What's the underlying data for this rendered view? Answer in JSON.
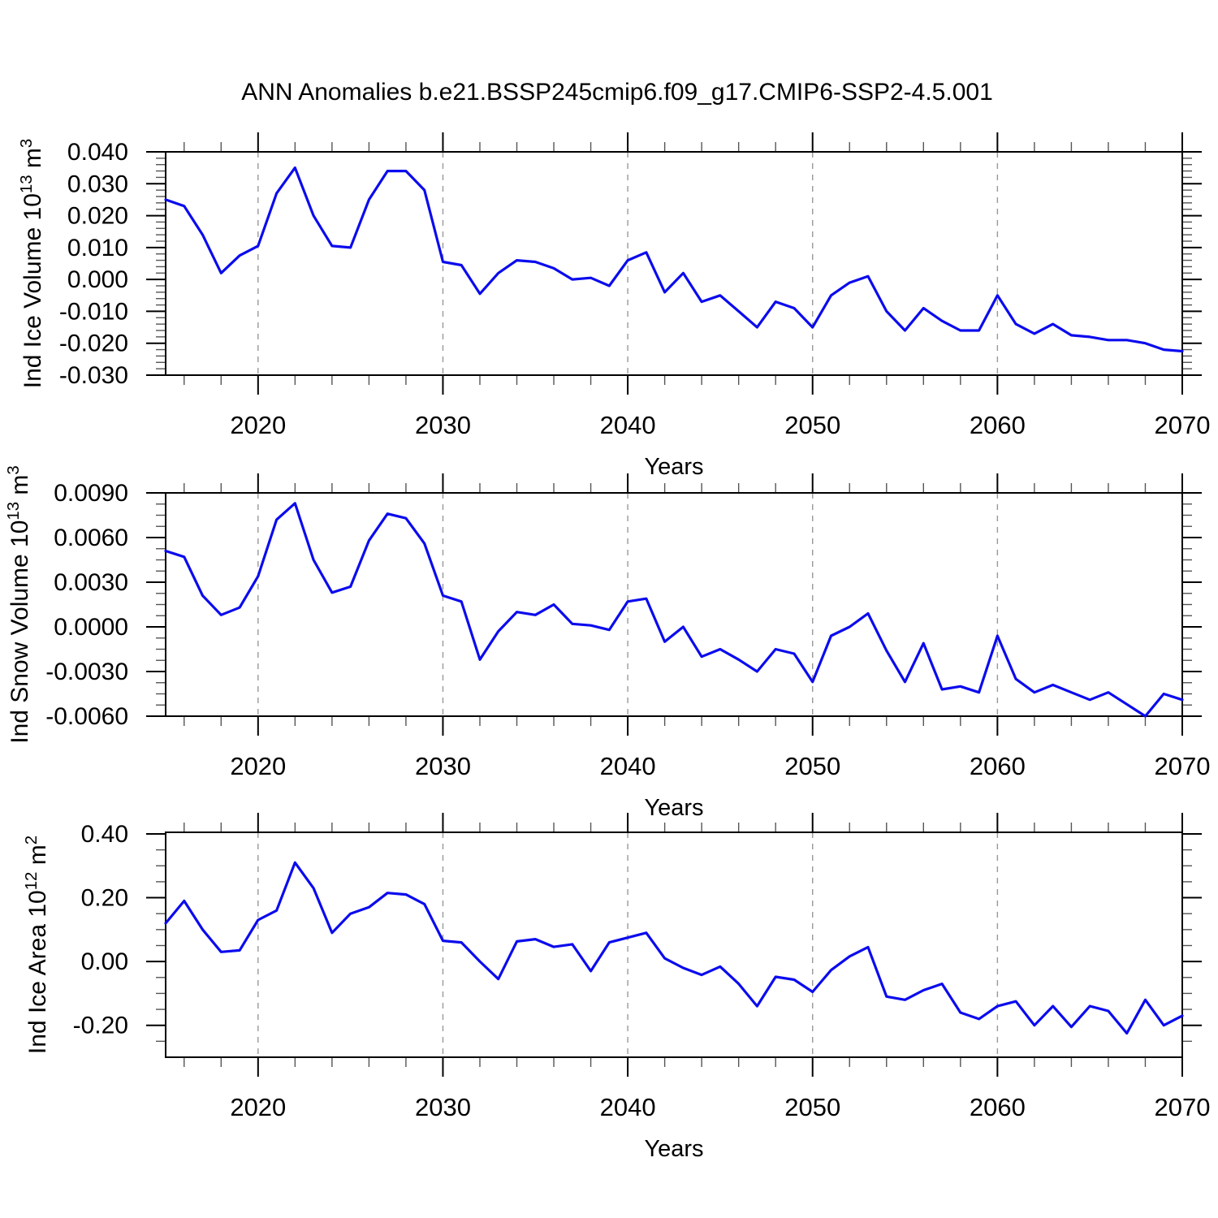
{
  "figure": {
    "title": "ANN Anomalies b.e21.BSSP245cmip6.f09_g17.CMIP6-SSP2-4.5.001",
    "background": "#ffffff",
    "line_color": "#0b0bee",
    "grid_color": "#999999",
    "axis_color": "#000000",
    "minor_tick_color": "#555555"
  },
  "chart_data": [
    {
      "type": "line",
      "title": "",
      "ylabel": "Ind Ice Volume 10^{13} m^{3}",
      "xlabel": "Years",
      "x": [
        2015,
        2016,
        2017,
        2018,
        2019,
        2020,
        2021,
        2022,
        2023,
        2024,
        2025,
        2026,
        2027,
        2028,
        2029,
        2030,
        2031,
        2032,
        2033,
        2034,
        2035,
        2036,
        2037,
        2038,
        2039,
        2040,
        2041,
        2042,
        2043,
        2044,
        2045,
        2046,
        2047,
        2048,
        2049,
        2050,
        2051,
        2052,
        2053,
        2054,
        2055,
        2056,
        2057,
        2058,
        2059,
        2060,
        2061,
        2062,
        2063,
        2064,
        2065,
        2066,
        2067,
        2068,
        2069,
        2070
      ],
      "values": [
        0.025,
        0.023,
        0.014,
        0.002,
        0.0075,
        0.0105,
        0.027,
        0.035,
        0.02,
        0.0105,
        0.01,
        0.025,
        0.034,
        0.034,
        0.028,
        0.0055,
        0.0045,
        -0.0045,
        0.002,
        0.006,
        0.0055,
        0.0035,
        0.0,
        0.0005,
        -0.002,
        0.006,
        0.0085,
        -0.004,
        0.002,
        -0.007,
        -0.005,
        -0.01,
        -0.015,
        -0.007,
        -0.009,
        -0.015,
        -0.005,
        -0.001,
        0.001,
        -0.01,
        -0.016,
        -0.009,
        -0.013,
        -0.016,
        -0.016,
        -0.005,
        -0.014,
        -0.017,
        -0.014,
        -0.0175,
        -0.018,
        -0.019,
        -0.019,
        -0.02,
        -0.022,
        -0.0225
      ],
      "xlim": [
        2015,
        2070
      ],
      "ylim": [
        -0.03,
        0.04
      ],
      "yticks": [
        0.04,
        0.03,
        0.02,
        0.01,
        0.0,
        -0.01,
        -0.02,
        -0.03
      ],
      "ytick_decimals": 3,
      "ytick_minor_step": 0.002,
      "xticks": [
        2020,
        2030,
        2040,
        2050,
        2060,
        2070
      ],
      "xtick_minor_step": 2,
      "grid_years": [
        2020,
        2030,
        2040,
        2050,
        2060
      ],
      "grid_style": "dashed",
      "legend": "none"
    },
    {
      "type": "line",
      "title": "",
      "ylabel": "Ind Snow Volume 10^{13} m^{3}",
      "xlabel": "Years",
      "x": [
        2015,
        2016,
        2017,
        2018,
        2019,
        2020,
        2021,
        2022,
        2023,
        2024,
        2025,
        2026,
        2027,
        2028,
        2029,
        2030,
        2031,
        2032,
        2033,
        2034,
        2035,
        2036,
        2037,
        2038,
        2039,
        2040,
        2041,
        2042,
        2043,
        2044,
        2045,
        2046,
        2047,
        2048,
        2049,
        2050,
        2051,
        2052,
        2053,
        2054,
        2055,
        2056,
        2057,
        2058,
        2059,
        2060,
        2061,
        2062,
        2063,
        2064,
        2065,
        2066,
        2067,
        2068,
        2069,
        2070
      ],
      "values": [
        0.0051,
        0.0047,
        0.0021,
        0.0008,
        0.0013,
        0.0034,
        0.0072,
        0.0083,
        0.0045,
        0.0023,
        0.0027,
        0.0058,
        0.0076,
        0.0073,
        0.0056,
        0.0021,
        0.0017,
        -0.0022,
        -0.0003,
        0.001,
        0.0008,
        0.0015,
        0.0002,
        0.0001,
        -0.0002,
        0.0017,
        0.0019,
        -0.001,
        0.0,
        -0.002,
        -0.0015,
        -0.0022,
        -0.003,
        -0.0015,
        -0.0018,
        -0.0037,
        -0.0006,
        0.0,
        0.0009,
        -0.0016,
        -0.0037,
        -0.0011,
        -0.0042,
        -0.004,
        -0.0044,
        -0.0006,
        -0.0035,
        -0.0044,
        -0.0039,
        -0.0044,
        -0.0049,
        -0.0044,
        -0.0052,
        -0.006,
        -0.0045,
        -0.0049
      ],
      "xlim": [
        2015,
        2070
      ],
      "ylim": [
        -0.006,
        0.009
      ],
      "yticks": [
        0.009,
        0.006,
        0.003,
        0.0,
        -0.003,
        -0.006
      ],
      "ytick_decimals": 4,
      "ytick_minor_step": 0.00075,
      "xticks": [
        2020,
        2030,
        2040,
        2050,
        2060,
        2070
      ],
      "xtick_minor_step": 2,
      "grid_years": [
        2020,
        2030,
        2040,
        2050,
        2060
      ],
      "grid_style": "dashed",
      "legend": "none"
    },
    {
      "type": "line",
      "title": "",
      "ylabel": "Ind Ice Area 10^{12} m^{2}",
      "xlabel": "Years",
      "x": [
        2015,
        2016,
        2017,
        2018,
        2019,
        2020,
        2021,
        2022,
        2023,
        2024,
        2025,
        2026,
        2027,
        2028,
        2029,
        2030,
        2031,
        2032,
        2033,
        2034,
        2035,
        2036,
        2037,
        2038,
        2039,
        2040,
        2041,
        2042,
        2043,
        2044,
        2045,
        2046,
        2047,
        2048,
        2049,
        2050,
        2051,
        2052,
        2053,
        2054,
        2055,
        2056,
        2057,
        2058,
        2059,
        2060,
        2061,
        2062,
        2063,
        2064,
        2065,
        2066,
        2067,
        2068,
        2069,
        2070
      ],
      "values": [
        0.12,
        0.19,
        0.1,
        0.03,
        0.035,
        0.13,
        0.16,
        0.31,
        0.23,
        0.09,
        0.15,
        0.17,
        0.215,
        0.21,
        0.18,
        0.065,
        0.06,
        0.0,
        -0.055,
        0.063,
        0.07,
        0.046,
        0.054,
        -0.03,
        0.06,
        0.075,
        0.09,
        0.01,
        -0.02,
        -0.042,
        -0.016,
        -0.07,
        -0.14,
        -0.048,
        -0.057,
        -0.095,
        -0.027,
        0.016,
        0.045,
        -0.11,
        -0.12,
        -0.09,
        -0.07,
        -0.16,
        -0.18,
        -0.14,
        -0.125,
        -0.2,
        -0.14,
        -0.205,
        -0.14,
        -0.155,
        -0.225,
        -0.12,
        -0.2,
        -0.17
      ],
      "xlim": [
        2015,
        2070
      ],
      "ylim": [
        -0.3,
        0.405
      ],
      "yticks": [
        0.4,
        0.2,
        0.0,
        -0.2
      ],
      "ytick_decimals": 2,
      "ytick_minor_step": 0.05,
      "xticks": [
        2020,
        2030,
        2040,
        2050,
        2060,
        2070
      ],
      "xtick_minor_step": 2,
      "grid_years": [
        2020,
        2030,
        2040,
        2050,
        2060
      ],
      "grid_style": "dashed",
      "legend": "none"
    }
  ]
}
